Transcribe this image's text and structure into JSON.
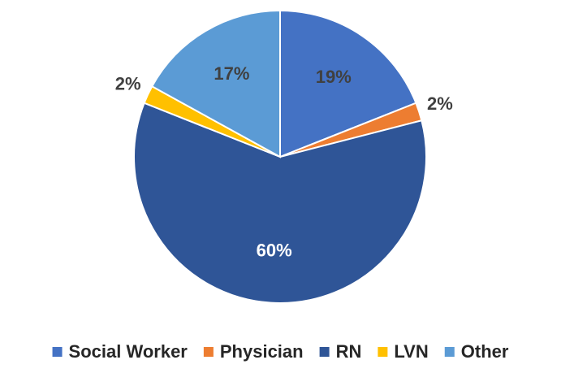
{
  "chart_data": {
    "type": "pie",
    "categories": [
      "Social Worker",
      "Physician",
      "RN",
      "LVN",
      "Other"
    ],
    "values": [
      19,
      2,
      60,
      2,
      17
    ],
    "value_labels": [
      "19%",
      "2%",
      "60%",
      "2%",
      "17%"
    ],
    "colors": [
      "#4472c4",
      "#ed7d31",
      "#2f5597",
      "#ffc000",
      "#5b9bd5"
    ],
    "legend": "bottom"
  }
}
